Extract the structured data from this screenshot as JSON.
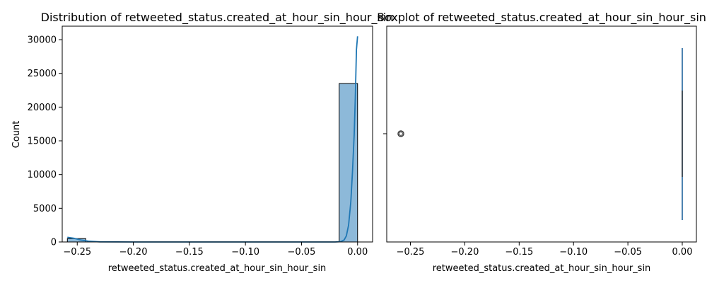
{
  "chart_data": [
    {
      "type": "histogram",
      "title": "Distribution of retweeted_status.created_at_hour_sin_hour_sin",
      "xlabel": "retweeted_status.created_at_hour_sin_hour_sin",
      "ylabel": "Count",
      "xlim": [
        -0.2634,
        0.0134
      ],
      "ylim": [
        0,
        32000
      ],
      "xticks": [
        -0.25,
        -0.2,
        -0.15,
        -0.1,
        -0.05,
        0.0
      ],
      "xtick_labels": [
        "−0.25",
        "−0.20",
        "−0.15",
        "−0.10",
        "−0.05",
        "0.00"
      ],
      "yticks": [
        0,
        5000,
        10000,
        15000,
        20000,
        25000,
        30000
      ],
      "ytick_labels": [
        "0",
        "5000",
        "10000",
        "15000",
        "20000",
        "25000",
        "30000"
      ],
      "bars": [
        {
          "x0": -0.2588,
          "x1": -0.2424,
          "count": 500
        },
        {
          "x0": -0.2424,
          "x1": -0.2259,
          "count": 0
        },
        {
          "x0": -0.2259,
          "x1": -0.2095,
          "count": 0
        },
        {
          "x0": -0.2095,
          "x1": -0.193,
          "count": 0
        },
        {
          "x0": -0.193,
          "x1": -0.1766,
          "count": 0
        },
        {
          "x0": -0.1766,
          "x1": -0.1601,
          "count": 0
        },
        {
          "x0": -0.1601,
          "x1": -0.1437,
          "count": 0
        },
        {
          "x0": -0.1437,
          "x1": -0.1272,
          "count": 0
        },
        {
          "x0": -0.1272,
          "x1": -0.1108,
          "count": 0
        },
        {
          "x0": -0.1108,
          "x1": -0.0943,
          "count": 0
        },
        {
          "x0": -0.0943,
          "x1": -0.0779,
          "count": 0
        },
        {
          "x0": -0.0779,
          "x1": -0.0614,
          "count": 0
        },
        {
          "x0": -0.0614,
          "x1": -0.045,
          "count": 0
        },
        {
          "x0": -0.045,
          "x1": -0.0285,
          "count": 0
        },
        {
          "x0": -0.0285,
          "x1": -0.0164,
          "count": 0
        },
        {
          "x0": -0.0164,
          "x1": 0.0,
          "count": 23500
        }
      ],
      "kde": {
        "x": [
          -0.2588,
          -0.253,
          -0.247,
          -0.24,
          -0.23,
          -0.2,
          -0.15,
          -0.1,
          -0.05,
          -0.02,
          -0.015,
          -0.012,
          -0.01,
          -0.008,
          -0.006,
          -0.0045,
          -0.003,
          -0.002,
          -0.001,
          0.0
        ],
        "y": [
          700,
          550,
          300,
          120,
          20,
          0,
          0,
          0,
          0,
          0,
          50,
          300,
          900,
          2500,
          6000,
          10500,
          16000,
          21500,
          28500,
          30500
        ]
      },
      "bar_color": "#8db9d9",
      "line_color": "#1f77b4"
    },
    {
      "type": "boxplot",
      "title": "Boxplot of retweeted_status.created_at_hour_sin_hour_sin",
      "xlabel": "retweeted_status.created_at_hour_sin_hour_sin",
      "xlim": [
        -0.2718,
        0.013
      ],
      "xticks": [
        -0.25,
        -0.2,
        -0.15,
        -0.1,
        -0.05,
        0.0
      ],
      "xtick_labels": [
        "−0.25",
        "−0.20",
        "−0.15",
        "−0.10",
        "−0.05",
        "0.00"
      ],
      "box": {
        "q1": 0.0,
        "median": 0.0,
        "q3": 0.0,
        "whisker_low": 0.0,
        "whisker_high": 0.0
      },
      "outliers": [
        -0.2588
      ],
      "box_color": "#3a75a8"
    }
  ]
}
